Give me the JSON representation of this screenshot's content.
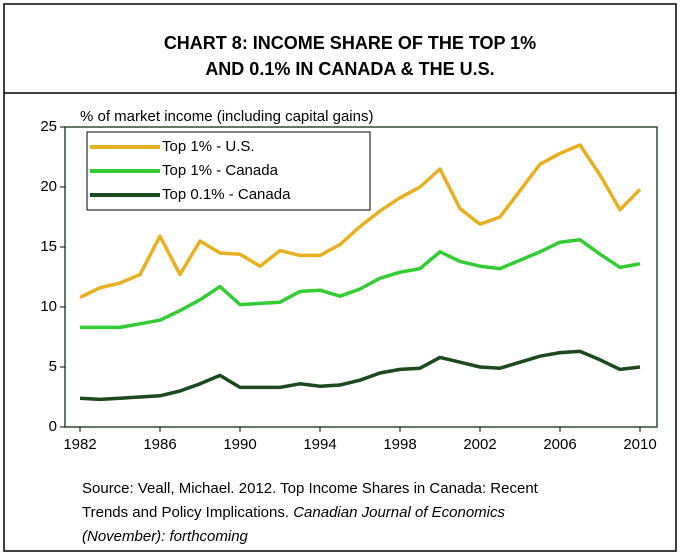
{
  "chart_data": {
    "type": "line",
    "title": [
      "CHART 8: INCOME SHARE OF THE TOP 1%",
      "AND 0.1% IN CANADA & THE U.S."
    ],
    "y_label": "% of market income (including capital gains)",
    "x": [
      1982,
      1983,
      1984,
      1985,
      1986,
      1987,
      1988,
      1989,
      1990,
      1991,
      1992,
      1993,
      1994,
      1995,
      1996,
      1997,
      1998,
      1999,
      2000,
      2001,
      2002,
      2003,
      2004,
      2005,
      2006,
      2007,
      2008,
      2009,
      2010
    ],
    "series": [
      {
        "name": "Top 1% - U.S.",
        "color": "#e6b021",
        "values": [
          10.8,
          11.6,
          12.0,
          12.7,
          15.9,
          12.7,
          15.5,
          14.5,
          14.4,
          13.4,
          14.7,
          14.3,
          14.3,
          15.2,
          16.7,
          18.0,
          19.1,
          20.0,
          21.5,
          18.2,
          16.9,
          17.5,
          19.7,
          21.9,
          22.8,
          23.5,
          21.0,
          18.1,
          19.8
        ]
      },
      {
        "name": "Top 1% - Canada",
        "color": "#33cc33",
        "values": [
          8.3,
          8.3,
          8.3,
          8.6,
          8.9,
          9.7,
          10.6,
          11.7,
          10.2,
          10.3,
          10.4,
          11.3,
          11.4,
          10.9,
          11.5,
          12.4,
          12.9,
          13.2,
          14.6,
          13.8,
          13.4,
          13.2,
          13.9,
          14.6,
          15.4,
          15.6,
          14.4,
          13.3,
          13.6
        ]
      },
      {
        "name": "Top 0.1% - Canada",
        "color": "#1b4a1f",
        "values": [
          2.4,
          2.3,
          2.4,
          2.5,
          2.6,
          3.0,
          3.6,
          4.3,
          3.3,
          3.3,
          3.3,
          3.6,
          3.4,
          3.5,
          3.9,
          4.5,
          4.8,
          4.9,
          5.8,
          5.4,
          5.0,
          4.9,
          5.4,
          5.9,
          6.2,
          6.3,
          5.6,
          4.8,
          5.0
        ]
      }
    ],
    "xlim": [
      1981.25,
      2010.85
    ],
    "xticks": [
      1982,
      1986,
      1990,
      1994,
      1998,
      2002,
      2006,
      2010
    ],
    "ylim": [
      0,
      25
    ],
    "yticks": [
      0,
      5,
      10,
      15,
      20,
      25
    ],
    "grid": false,
    "legend": "top-left",
    "source": "Source: Veall, Michael. 2012. Top Income Shares in Canada: Recent Trends and Policy Implications.",
    "source_italic": "Canadian Journal of Economics (November): forthcoming"
  }
}
